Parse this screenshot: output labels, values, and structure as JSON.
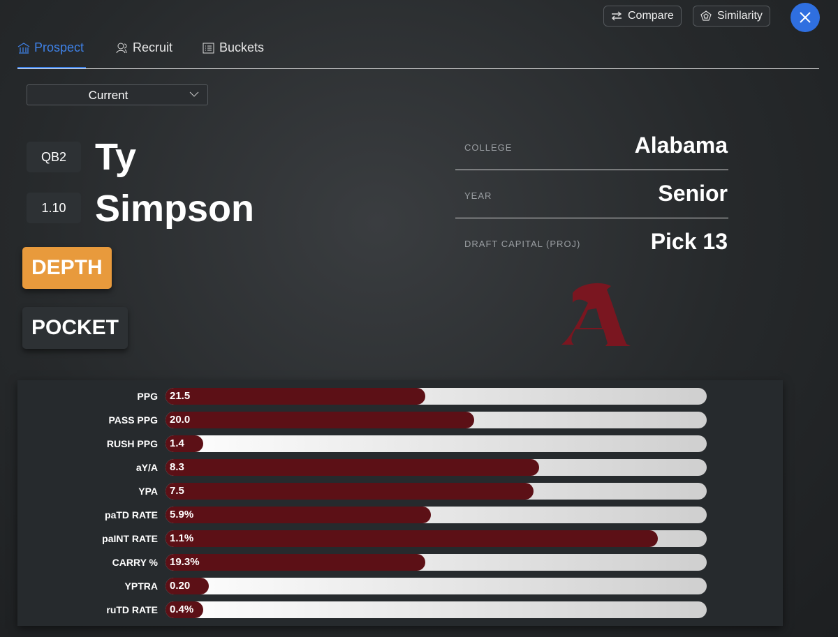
{
  "header": {
    "buttons": [
      "Compare",
      "Similarity"
    ]
  },
  "tabs": {
    "items": [
      "Prospect",
      "Recruit",
      "Buckets"
    ],
    "active": 0
  },
  "dropdown": {
    "value": "Current"
  },
  "player": {
    "badges": [
      "QB2",
      "1.10"
    ],
    "first_name": "Ty",
    "last_name": "Simpson",
    "tags": [
      "DEPTH",
      "POCKET"
    ]
  },
  "info": [
    {
      "label": "COLLEGE",
      "value": "Alabama"
    },
    {
      "label": "YEAR",
      "value": "Senior"
    },
    {
      "label": "DRAFT CAPITAL (PROJ)",
      "value": "Pick 13"
    }
  ],
  "stats": {
    "range": [
      0,
      100
    ],
    "rows": [
      {
        "label": "PPG",
        "value": "21.5",
        "fill": 48
      },
      {
        "label": "PASS PPG",
        "value": "20.0",
        "fill": 57
      },
      {
        "label": "RUSH PPG",
        "value": "1.4",
        "fill": 7
      },
      {
        "label": "aY/A",
        "value": "8.3",
        "fill": 69
      },
      {
        "label": "YPA",
        "value": "7.5",
        "fill": 68
      },
      {
        "label": "paTD RATE",
        "value": "5.9%",
        "fill": 49
      },
      {
        "label": "paINT RATE",
        "value": "1.1%",
        "fill": 91
      },
      {
        "label": "CARRY %",
        "value": "19.3%",
        "fill": 48
      },
      {
        "label": "YPTRA",
        "value": "0.20",
        "fill": 8
      },
      {
        "label": "ruTD RATE",
        "value": "0.4%",
        "fill": 7
      }
    ]
  }
}
